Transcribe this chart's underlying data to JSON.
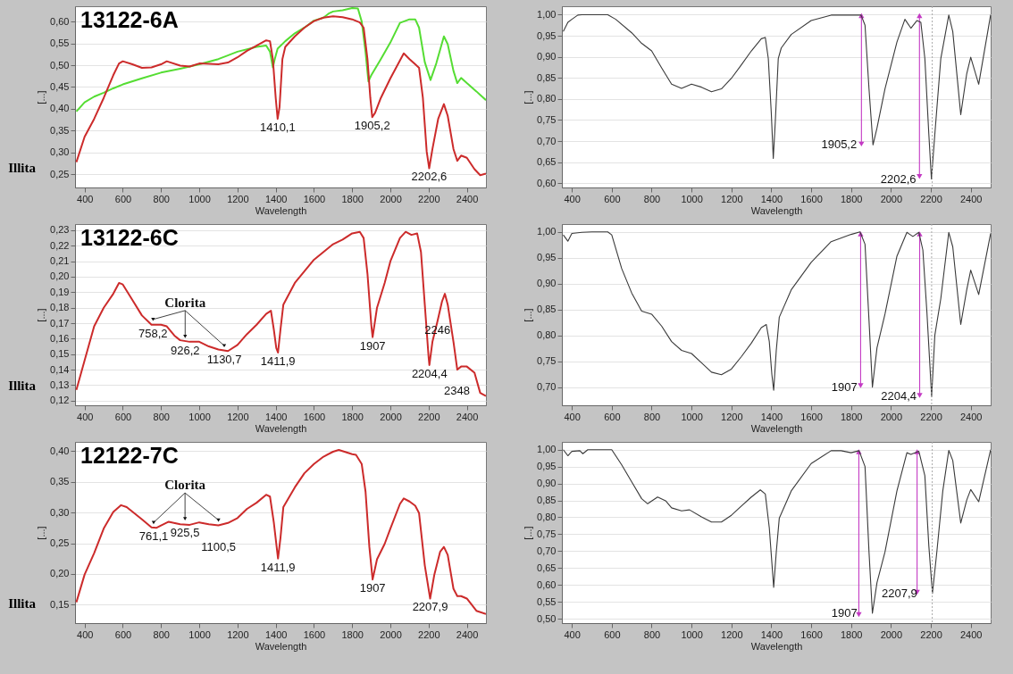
{
  "chart_data": [
    {
      "type": "line",
      "title": "13122-6A",
      "xlabel": "Wavelength",
      "ylabel": "[...]",
      "xlim": [
        350,
        2500
      ],
      "xticks": [
        400,
        600,
        800,
        1000,
        1200,
        1400,
        1600,
        1800,
        2000,
        2200,
        2400
      ],
      "ylim": [
        0.22,
        0.635
      ],
      "yticks": [
        {
          "value": 0.25,
          "label": "0,25"
        },
        {
          "value": 0.3,
          "label": "0,30"
        },
        {
          "value": 0.35,
          "label": "0,35"
        },
        {
          "value": 0.4,
          "label": "0,40"
        },
        {
          "value": 0.45,
          "label": "0,45"
        },
        {
          "value": 0.5,
          "label": "0,50"
        },
        {
          "value": 0.55,
          "label": "0,55"
        },
        {
          "value": 0.6,
          "label": "0,60"
        }
      ],
      "grid": "y",
      "series": [
        {
          "color": "#55dd33",
          "x": [
            357,
            400,
            450,
            500,
            550,
            600,
            700,
            800,
            900,
            1000,
            1100,
            1200,
            1300,
            1350,
            1370,
            1385,
            1395,
            1410,
            1450,
            1500,
            1550,
            1600,
            1650,
            1680,
            1700,
            1750,
            1800,
            1830,
            1850,
            1870,
            1885,
            1900,
            1950,
            2000,
            2050,
            2100,
            2130,
            2150,
            2180,
            2210,
            2240,
            2280,
            2300,
            2330,
            2350,
            2370,
            2400,
            2450,
            2500
          ],
          "values": [
            0.394,
            0.415,
            0.428,
            0.437,
            0.447,
            0.456,
            0.47,
            0.483,
            0.492,
            0.502,
            0.514,
            0.531,
            0.542,
            0.545,
            0.531,
            0.495,
            0.514,
            0.538,
            0.555,
            0.573,
            0.586,
            0.602,
            0.609,
            0.619,
            0.623,
            0.626,
            0.631,
            0.63,
            0.6,
            0.53,
            0.463,
            0.477,
            0.514,
            0.552,
            0.597,
            0.605,
            0.605,
            0.586,
            0.507,
            0.466,
            0.504,
            0.566,
            0.548,
            0.487,
            0.459,
            0.471,
            0.459,
            0.44,
            0.42
          ]
        },
        {
          "color": "#cc2b2b",
          "x": [
            357,
            400,
            450,
            500,
            550,
            580,
            600,
            650,
            700,
            750,
            800,
            830,
            900,
            950,
            1000,
            1100,
            1150,
            1200,
            1250,
            1300,
            1350,
            1370,
            1385,
            1400,
            1410,
            1420,
            1435,
            1450,
            1500,
            1550,
            1600,
            1650,
            1700,
            1750,
            1800,
            1840,
            1860,
            1880,
            1895,
            1905,
            1920,
            1950,
            2000,
            2050,
            2070,
            2100,
            2130,
            2150,
            2170,
            2190,
            2203,
            2220,
            2250,
            2280,
            2300,
            2330,
            2350,
            2370,
            2400,
            2440,
            2470,
            2500
          ],
          "values": [
            0.278,
            0.336,
            0.377,
            0.425,
            0.477,
            0.504,
            0.509,
            0.502,
            0.494,
            0.495,
            0.502,
            0.509,
            0.499,
            0.497,
            0.504,
            0.502,
            0.506,
            0.518,
            0.533,
            0.545,
            0.557,
            0.555,
            0.514,
            0.425,
            0.377,
            0.404,
            0.514,
            0.542,
            0.566,
            0.586,
            0.601,
            0.609,
            0.612,
            0.61,
            0.605,
            0.598,
            0.586,
            0.514,
            0.425,
            0.381,
            0.391,
            0.425,
            0.47,
            0.511,
            0.527,
            0.514,
            0.502,
            0.494,
            0.425,
            0.302,
            0.264,
            0.308,
            0.377,
            0.411,
            0.384,
            0.308,
            0.281,
            0.293,
            0.288,
            0.262,
            0.248,
            0.252
          ]
        }
      ],
      "annotations": [
        "Illita",
        {
          "text": "1410,1",
          "x": 1410.1,
          "y": 0.377
        },
        {
          "text": "1905,2",
          "x": 1905.2,
          "y": 0.381
        },
        {
          "text": "2202,6",
          "x": 2202.6,
          "y": 0.264
        }
      ]
    },
    {
      "type": "line",
      "xlabel": "Wavelength",
      "ylabel": "[...]",
      "xlim": [
        350,
        2500
      ],
      "xticks": [
        400,
        600,
        800,
        1000,
        1200,
        1400,
        1600,
        1800,
        2000,
        2200,
        2400
      ],
      "ylim": [
        0.59,
        1.02
      ],
      "yticks": [
        {
          "value": 0.6,
          "label": "0,60"
        },
        {
          "value": 0.65,
          "label": "0,65"
        },
        {
          "value": 0.7,
          "label": "0,70"
        },
        {
          "value": 0.75,
          "label": "0,75"
        },
        {
          "value": 0.8,
          "label": "0,80"
        },
        {
          "value": 0.85,
          "label": "0,85"
        },
        {
          "value": 0.9,
          "label": "0,90"
        },
        {
          "value": 0.95,
          "label": "0,95"
        },
        {
          "value": 1,
          "label": "1,00"
        }
      ],
      "grid": "y",
      "x": [
        357,
        380,
        400,
        430,
        450,
        580,
        620,
        700,
        750,
        800,
        850,
        900,
        950,
        1000,
        1050,
        1100,
        1150,
        1200,
        1250,
        1300,
        1350,
        1370,
        1385,
        1400,
        1410,
        1420,
        1435,
        1450,
        1500,
        1600,
        1700,
        1800,
        1850,
        1870,
        1890,
        1910,
        1930,
        1970,
        2030,
        2070,
        2100,
        2130,
        2150,
        2170,
        2190,
        2203,
        2220,
        2250,
        2290,
        2310,
        2350,
        2380,
        2400,
        2440,
        2500
      ],
      "series": [
        {
          "type": "line",
          "color": "#c43ac4",
          "marker": "triangle",
          "x": [
            1852,
            1852
          ],
          "values": [
            0.998,
            0.693
          ]
        },
        {
          "type": "line",
          "color": "#c43ac4",
          "marker": "triangle",
          "x": [
            2143,
            2143
          ],
          "values": [
            0.998,
            0.616
          ]
        },
        {
          "color": "#3a3a3a",
          "values": [
            0.96,
            0.982,
            0.989,
            0.999,
            1.0,
            1.0,
            0.989,
            0.957,
            0.932,
            0.914,
            0.874,
            0.835,
            0.825,
            0.835,
            0.828,
            0.817,
            0.824,
            0.849,
            0.881,
            0.914,
            0.943,
            0.946,
            0.896,
            0.767,
            0.659,
            0.745,
            0.896,
            0.921,
            0.953,
            0.986,
            0.999,
            0.999,
            0.999,
            0.975,
            0.824,
            0.691,
            0.731,
            0.824,
            0.935,
            0.989,
            0.968,
            0.986,
            0.982,
            0.896,
            0.716,
            0.61,
            0.716,
            0.896,
            0.999,
            0.96,
            0.763,
            0.86,
            0.899,
            0.835,
            1.0
          ]
        }
      ],
      "ref_lines": [
        {
          "axis": "x",
          "value": 2207,
          "color": "#aaaaaa",
          "line_style": "dotted"
        }
      ],
      "annotations": [
        {
          "text": "1905,2",
          "x": 1905.2,
          "y": 0.691
        },
        {
          "text": "2202,6",
          "x": 2202.6,
          "y": 0.61
        }
      ]
    },
    {
      "type": "line",
      "title": "13122-6C",
      "xlabel": "Wavelength",
      "ylabel": "[...]",
      "xlim": [
        350,
        2500
      ],
      "xticks": [
        400,
        600,
        800,
        1000,
        1200,
        1400,
        1600,
        1800,
        2000,
        2200,
        2400
      ],
      "ylim": [
        0.117,
        0.234
      ],
      "yticks": [
        {
          "value": 0.12,
          "label": "0,12"
        },
        {
          "value": 0.13,
          "label": "0,13"
        },
        {
          "value": 0.14,
          "label": "0,14"
        },
        {
          "value": 0.15,
          "label": "0,15"
        },
        {
          "value": 0.16,
          "label": "0,16"
        },
        {
          "value": 0.17,
          "label": "0,17"
        },
        {
          "value": 0.18,
          "label": "0,18"
        },
        {
          "value": 0.19,
          "label": "0,19"
        },
        {
          "value": 0.2,
          "label": "0,20"
        },
        {
          "value": 0.21,
          "label": "0,21"
        },
        {
          "value": 0.22,
          "label": "0,22"
        },
        {
          "value": 0.23,
          "label": "0,23"
        }
      ],
      "grid": "y",
      "x": [
        357,
        400,
        450,
        500,
        550,
        580,
        600,
        650,
        700,
        750,
        800,
        830,
        870,
        900,
        950,
        1000,
        1050,
        1100,
        1150,
        1200,
        1250,
        1300,
        1350,
        1375,
        1390,
        1403,
        1412,
        1425,
        1440,
        1500,
        1600,
        1700,
        1750,
        1800,
        1840,
        1860,
        1880,
        1900,
        1907,
        1930,
        1970,
        2000,
        2050,
        2080,
        2110,
        2140,
        2160,
        2180,
        2200,
        2204,
        2220,
        2246,
        2270,
        2285,
        2300,
        2330,
        2350,
        2370,
        2400,
        2440,
        2470,
        2500
      ],
      "series": [
        {
          "color": "#cc2b2b",
          "values": [
            0.127,
            0.146,
            0.168,
            0.18,
            0.189,
            0.196,
            0.195,
            0.185,
            0.175,
            0.169,
            0.169,
            0.168,
            0.162,
            0.159,
            0.158,
            0.158,
            0.155,
            0.153,
            0.152,
            0.156,
            0.163,
            0.169,
            0.176,
            0.178,
            0.166,
            0.154,
            0.151,
            0.166,
            0.182,
            0.196,
            0.211,
            0.221,
            0.224,
            0.228,
            0.229,
            0.225,
            0.202,
            0.169,
            0.161,
            0.18,
            0.196,
            0.21,
            0.225,
            0.229,
            0.227,
            0.228,
            0.216,
            0.182,
            0.148,
            0.143,
            0.158,
            0.171,
            0.184,
            0.189,
            0.182,
            0.158,
            0.14,
            0.142,
            0.142,
            0.138,
            0.125,
            0.123
          ]
        }
      ],
      "annotations": [
        "Illita",
        {
          "text": "758,2",
          "x": 758.2,
          "y": 0.169
        },
        {
          "text": "926,2",
          "x": 926.2,
          "y": 0.158
        },
        {
          "text": "Clorita",
          "x": 926.2,
          "y": 0.158
        },
        {
          "text": "1130,7",
          "x": 1130.7,
          "y": 0.152
        },
        {
          "text": "1411,9",
          "x": 1411.9,
          "y": 0.151
        },
        {
          "text": "1907",
          "x": 1907,
          "y": 0.161
        },
        {
          "text": "2246",
          "x": 2246,
          "y": 0.171
        },
        {
          "text": "2204,4",
          "x": 2204.4,
          "y": 0.143
        },
        {
          "text": "2348",
          "x": 2348,
          "y": 0.14
        }
      ]
    },
    {
      "type": "line",
      "xlabel": "Wavelength",
      "ylabel": "[...]",
      "xlim": [
        350,
        2500
      ],
      "xticks": [
        400,
        600,
        800,
        1000,
        1200,
        1400,
        1600,
        1800,
        2000,
        2200,
        2400
      ],
      "ylim": [
        0.665,
        1.015
      ],
      "yticks": [
        {
          "value": 0.7,
          "label": "0,70"
        },
        {
          "value": 0.75,
          "label": "0,75"
        },
        {
          "value": 0.8,
          "label": "0,80"
        },
        {
          "value": 0.85,
          "label": "0,85"
        },
        {
          "value": 0.9,
          "label": "0,90"
        },
        {
          "value": 0.95,
          "label": "0,95"
        },
        {
          "value": 1,
          "label": "1,00"
        }
      ],
      "grid": "y",
      "x": [
        357,
        380,
        400,
        450,
        500,
        580,
        600,
        650,
        700,
        750,
        800,
        850,
        900,
        950,
        1000,
        1050,
        1100,
        1150,
        1200,
        1250,
        1300,
        1350,
        1375,
        1390,
        1403,
        1412,
        1425,
        1440,
        1500,
        1600,
        1700,
        1800,
        1845,
        1870,
        1890,
        1907,
        1930,
        1970,
        2030,
        2080,
        2110,
        2140,
        2160,
        2180,
        2204,
        2220,
        2250,
        2290,
        2310,
        2350,
        2380,
        2400,
        2440,
        2500
      ],
      "series": [
        {
          "type": "line",
          "color": "#c43ac4",
          "marker": "triangle",
          "x": [
            1848,
            1848
          ],
          "values": [
            0.996,
            0.703
          ]
        },
        {
          "type": "line",
          "color": "#c43ac4",
          "marker": "triangle",
          "x": [
            2144,
            2144
          ],
          "values": [
            0.996,
            0.684
          ]
        },
        {
          "color": "#3a3a3a",
          "values": [
            0.994,
            0.982,
            0.997,
            0.999,
            1.0,
            1.0,
            0.994,
            0.929,
            0.882,
            0.847,
            0.841,
            0.818,
            0.788,
            0.771,
            0.765,
            0.747,
            0.729,
            0.724,
            0.735,
            0.759,
            0.785,
            0.815,
            0.821,
            0.788,
            0.724,
            0.694,
            0.771,
            0.835,
            0.888,
            0.941,
            0.981,
            0.995,
            1.0,
            0.976,
            0.829,
            0.7,
            0.776,
            0.841,
            0.953,
            0.999,
            0.991,
            0.999,
            0.965,
            0.847,
            0.682,
            0.8,
            0.871,
            0.999,
            0.971,
            0.821,
            0.888,
            0.926,
            0.879,
            0.997
          ]
        }
      ],
      "ref_lines": [
        {
          "axis": "x",
          "value": 2204,
          "color": "#aaaaaa",
          "line_style": "dotted"
        }
      ],
      "annotations": [
        {
          "text": "1907",
          "x": 1907,
          "y": 0.7
        },
        {
          "text": "2204,4",
          "x": 2204.4,
          "y": 0.682
        }
      ]
    },
    {
      "type": "line",
      "title": "12122-7C",
      "xlabel": "Wavelength",
      "ylabel": "[...]",
      "xlim": [
        350,
        2500
      ],
      "xticks": [
        400,
        600,
        800,
        1000,
        1200,
        1400,
        1600,
        1800,
        2000,
        2200,
        2400
      ],
      "ylim": [
        0.12,
        0.415
      ],
      "yticks": [
        {
          "value": 0.15,
          "label": "0,15"
        },
        {
          "value": 0.2,
          "label": "0,20"
        },
        {
          "value": 0.25,
          "label": "0,25"
        },
        {
          "value": 0.3,
          "label": "0,30"
        },
        {
          "value": 0.35,
          "label": "0,35"
        },
        {
          "value": 0.4,
          "label": "0,40"
        }
      ],
      "grid": "y",
      "x": [
        357,
        400,
        450,
        500,
        550,
        590,
        620,
        700,
        750,
        775,
        800,
        840,
        900,
        950,
        1000,
        1050,
        1100,
        1150,
        1200,
        1250,
        1300,
        1350,
        1370,
        1390,
        1412,
        1425,
        1440,
        1500,
        1550,
        1600,
        1650,
        1700,
        1730,
        1760,
        1800,
        1820,
        1850,
        1870,
        1890,
        1907,
        1930,
        1970,
        2000,
        2050,
        2070,
        2100,
        2130,
        2150,
        2180,
        2208,
        2230,
        2260,
        2280,
        2300,
        2330,
        2350,
        2370,
        2400,
        2450,
        2500
      ],
      "series": [
        {
          "color": "#cc2b2b",
          "values": [
            0.154,
            0.199,
            0.234,
            0.274,
            0.301,
            0.312,
            0.309,
            0.289,
            0.276,
            0.275,
            0.279,
            0.285,
            0.281,
            0.28,
            0.284,
            0.281,
            0.279,
            0.283,
            0.291,
            0.306,
            0.316,
            0.329,
            0.326,
            0.284,
            0.225,
            0.259,
            0.309,
            0.341,
            0.364,
            0.379,
            0.391,
            0.399,
            0.402,
            0.399,
            0.395,
            0.394,
            0.379,
            0.334,
            0.244,
            0.191,
            0.224,
            0.249,
            0.274,
            0.314,
            0.323,
            0.318,
            0.311,
            0.299,
            0.214,
            0.16,
            0.199,
            0.236,
            0.244,
            0.231,
            0.176,
            0.164,
            0.164,
            0.16,
            0.14,
            0.135
          ]
        }
      ],
      "annotations": [
        "Illita",
        {
          "text": "761,1",
          "x": 761.1,
          "y": 0.275
        },
        {
          "text": "925,5",
          "x": 925.5,
          "y": 0.281
        },
        {
          "text": "Clorita",
          "x": 925.5,
          "y": 0.281
        },
        {
          "text": "1100,5",
          "x": 1100.5,
          "y": 0.279
        },
        {
          "text": "1411,9",
          "x": 1411.9,
          "y": 0.225
        },
        {
          "text": "1907",
          "x": 1907,
          "y": 0.191
        },
        {
          "text": "2207,9",
          "x": 2207.9,
          "y": 0.16
        }
      ]
    },
    {
      "type": "line",
      "xlabel": "Wavelength",
      "ylabel": "[...]",
      "xlim": [
        350,
        2500
      ],
      "xticks": [
        400,
        600,
        800,
        1000,
        1200,
        1400,
        1600,
        1800,
        2000,
        2200,
        2400
      ],
      "ylim": [
        0.487,
        1.023
      ],
      "yticks": [
        {
          "value": 0.5,
          "label": "0,50"
        },
        {
          "value": 0.55,
          "label": "0,55"
        },
        {
          "value": 0.6,
          "label": "0,60"
        },
        {
          "value": 0.65,
          "label": "0,65"
        },
        {
          "value": 0.7,
          "label": "0,70"
        },
        {
          "value": 0.75,
          "label": "0,75"
        },
        {
          "value": 0.8,
          "label": "0,80"
        },
        {
          "value": 0.85,
          "label": "0,85"
        },
        {
          "value": 0.9,
          "label": "0,90"
        },
        {
          "value": 0.95,
          "label": "0,95"
        },
        {
          "value": 1,
          "label": "1,00"
        }
      ],
      "grid": "y",
      "x": [
        357,
        380,
        400,
        440,
        455,
        480,
        600,
        650,
        700,
        750,
        780,
        830,
        870,
        900,
        950,
        990,
        1050,
        1100,
        1150,
        1200,
        1250,
        1300,
        1345,
        1370,
        1390,
        1412,
        1425,
        1440,
        1500,
        1600,
        1700,
        1750,
        1800,
        1840,
        1870,
        1890,
        1907,
        1930,
        1970,
        2030,
        2080,
        2100,
        2140,
        2170,
        2190,
        2208,
        2230,
        2260,
        2290,
        2310,
        2350,
        2380,
        2400,
        2440,
        2500
      ],
      "series": [
        {
          "type": "line",
          "color": "#c43ac4",
          "marker": "triangle",
          "x": [
            1839,
            1839
          ],
          "values": [
            0.994,
            0.512
          ]
        },
        {
          "type": "line",
          "color": "#c43ac4",
          "marker": "triangle",
          "x": [
            2131,
            2131
          ],
          "values": [
            0.994,
            0.578
          ]
        },
        {
          "color": "#3a3a3a",
          "values": [
            1.0,
            0.982,
            0.995,
            0.997,
            0.988,
            1.0,
            1.0,
            0.955,
            0.905,
            0.855,
            0.84,
            0.86,
            0.849,
            0.828,
            0.819,
            0.822,
            0.801,
            0.786,
            0.786,
            0.806,
            0.833,
            0.86,
            0.881,
            0.869,
            0.769,
            0.593,
            0.697,
            0.797,
            0.878,
            0.959,
            0.997,
            0.997,
            0.991,
            0.997,
            0.95,
            0.697,
            0.516,
            0.607,
            0.697,
            0.878,
            0.991,
            0.986,
            0.995,
            0.923,
            0.715,
            0.575,
            0.697,
            0.878,
            0.998,
            0.968,
            0.783,
            0.851,
            0.882,
            0.846,
            1.0
          ]
        }
      ],
      "ref_lines": [
        {
          "axis": "x",
          "value": 2207,
          "color": "#aaaaaa",
          "line_style": "dotted"
        }
      ],
      "annotations": [
        {
          "text": "1907",
          "x": 1907,
          "y": 0.516
        },
        {
          "text": "2207,9",
          "x": 2207.9,
          "y": 0.575
        }
      ]
    }
  ]
}
